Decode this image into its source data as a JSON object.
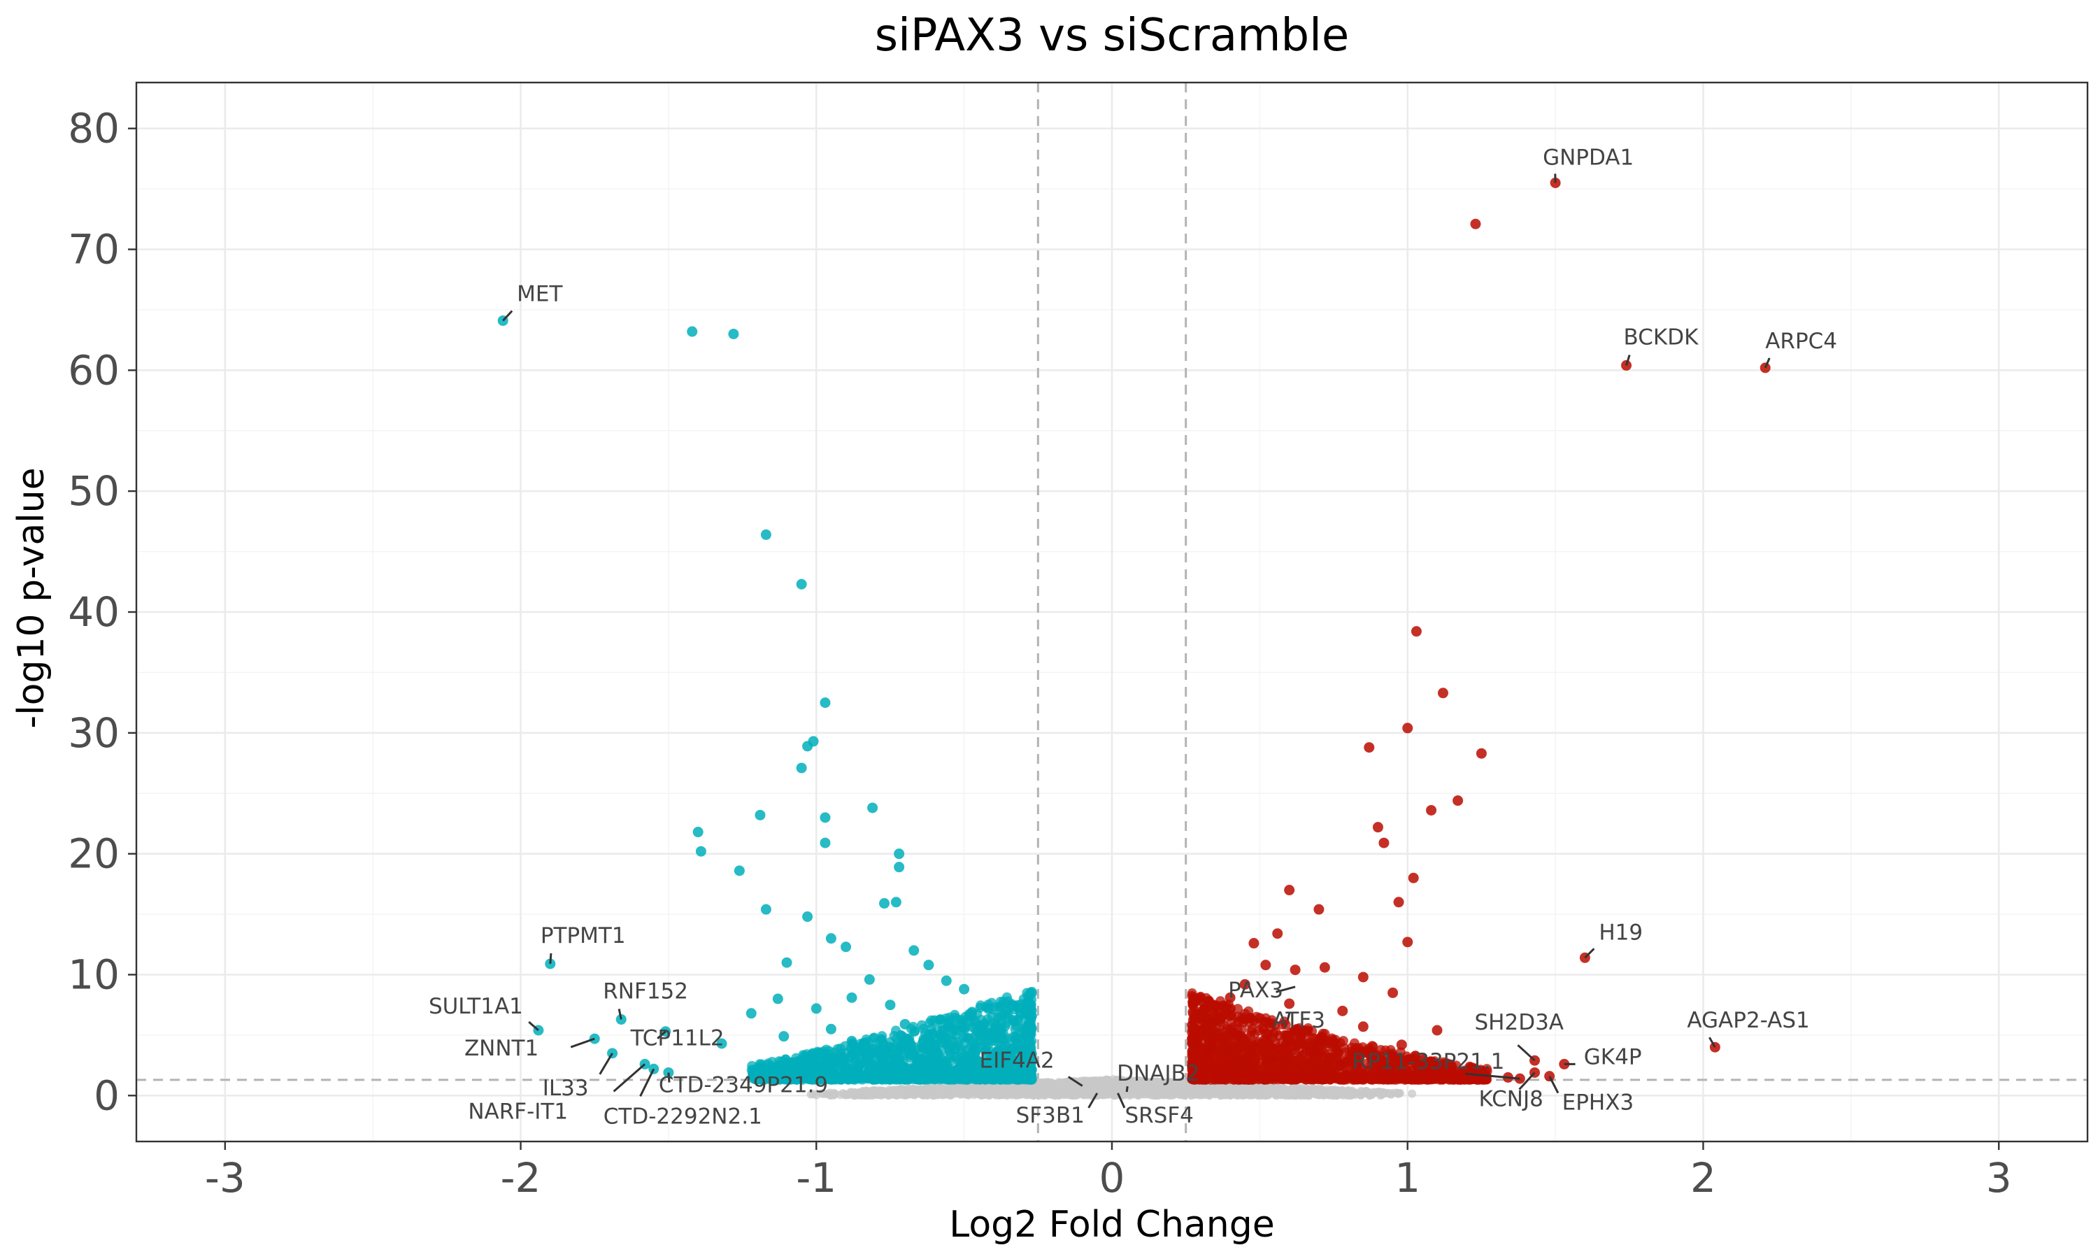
{
  "chart_data": {
    "type": "scatter",
    "title": "siPAX3 vs siScramble",
    "xlabel": "Log2 Fold Change",
    "ylabel": "-log10 p-value",
    "xlim": [
      -3.3,
      3.3
    ],
    "ylim": [
      -3.8,
      83.8
    ],
    "x_ticks": [
      -3,
      -2,
      -1,
      0,
      1,
      2,
      3
    ],
    "y_ticks": [
      0,
      10,
      20,
      30,
      40,
      50,
      60,
      70,
      80
    ],
    "grid": true,
    "thresholds": {
      "log2fc": [
        -0.25,
        0.25
      ],
      "neg_log10_p": 1.3
    },
    "colors": {
      "down": "#00AFBB",
      "up": "#BB0C00",
      "ns": "#C8C8C8"
    },
    "series": [
      {
        "group": "down",
        "points": [
          [
            -2.06,
            64.1
          ],
          [
            -1.42,
            63.2
          ],
          [
            -1.28,
            63.0
          ],
          [
            -1.17,
            46.4
          ],
          [
            -1.05,
            42.3
          ],
          [
            -0.97,
            32.5
          ],
          [
            -1.01,
            29.3
          ],
          [
            -1.03,
            28.9
          ],
          [
            -1.05,
            27.1
          ],
          [
            -1.4,
            21.8
          ],
          [
            -1.39,
            20.2
          ],
          [
            -1.19,
            23.2
          ],
          [
            -0.97,
            23.0
          ],
          [
            -0.81,
            23.8
          ],
          [
            -0.97,
            20.9
          ],
          [
            -1.26,
            18.6
          ],
          [
            -0.72,
            20.0
          ],
          [
            -0.72,
            18.9
          ],
          [
            -1.17,
            15.4
          ],
          [
            -0.77,
            15.9
          ],
          [
            -0.73,
            16.0
          ],
          [
            -1.9,
            10.9
          ],
          [
            -1.94,
            5.4
          ],
          [
            -1.75,
            4.7
          ],
          [
            -1.66,
            6.3
          ],
          [
            -1.51,
            5.3
          ],
          [
            -1.69,
            3.5
          ],
          [
            -1.58,
            2.6
          ],
          [
            -1.55,
            2.2
          ],
          [
            -1.5,
            1.9
          ],
          [
            -1.03,
            14.8
          ],
          [
            -0.95,
            13.0
          ],
          [
            -0.9,
            12.3
          ],
          [
            -1.1,
            11.0
          ],
          [
            -0.67,
            12.0
          ],
          [
            -0.62,
            10.8
          ],
          [
            -0.56,
            9.5
          ],
          [
            -0.82,
            9.6
          ],
          [
            -1.13,
            8.0
          ],
          [
            -1.0,
            7.2
          ],
          [
            -0.88,
            8.1
          ],
          [
            -0.75,
            7.5
          ],
          [
            -0.5,
            8.8
          ],
          [
            -1.22,
            6.8
          ],
          [
            -0.95,
            5.5
          ],
          [
            -0.7,
            5.9
          ],
          [
            -1.32,
            4.3
          ],
          [
            -1.11,
            4.9
          ],
          [
            -0.88,
            4.5
          ],
          [
            -0.6,
            6.2
          ]
        ]
      },
      {
        "group": "up",
        "points": [
          [
            1.5,
            75.5
          ],
          [
            1.23,
            72.1
          ],
          [
            1.74,
            60.4
          ],
          [
            2.21,
            60.2
          ],
          [
            1.03,
            38.4
          ],
          [
            1.12,
            33.3
          ],
          [
            1.0,
            30.4
          ],
          [
            1.25,
            28.3
          ],
          [
            0.87,
            28.8
          ],
          [
            1.17,
            24.4
          ],
          [
            1.08,
            23.6
          ],
          [
            0.9,
            22.2
          ],
          [
            0.92,
            20.9
          ],
          [
            1.02,
            18.0
          ],
          [
            0.6,
            17.0
          ],
          [
            0.7,
            15.4
          ],
          [
            0.97,
            16.0
          ],
          [
            0.48,
            12.6
          ],
          [
            0.56,
            13.4
          ],
          [
            1.0,
            12.7
          ],
          [
            1.6,
            11.4
          ],
          [
            2.04,
            4.0
          ],
          [
            1.53,
            2.6
          ],
          [
            1.48,
            1.6
          ],
          [
            1.43,
            1.9
          ],
          [
            1.43,
            2.9
          ],
          [
            1.34,
            1.5
          ],
          [
            1.38,
            1.4
          ],
          [
            1.22,
            1.7
          ],
          [
            1.15,
            2.0
          ],
          [
            0.52,
            10.8
          ],
          [
            0.62,
            10.4
          ],
          [
            0.72,
            10.6
          ],
          [
            0.85,
            9.8
          ],
          [
            0.45,
            9.2
          ],
          [
            0.4,
            8.1
          ],
          [
            0.6,
            7.6
          ],
          [
            0.78,
            7.0
          ],
          [
            0.95,
            8.5
          ],
          [
            0.35,
            6.6
          ],
          [
            0.5,
            6.4
          ],
          [
            0.85,
            5.7
          ],
          [
            1.1,
            5.4
          ],
          [
            0.42,
            5.0
          ],
          [
            0.7,
            4.6
          ],
          [
            0.98,
            4.2
          ],
          [
            0.33,
            3.5
          ],
          [
            0.55,
            3.1
          ],
          [
            0.78,
            2.8
          ],
          [
            1.05,
            2.4
          ]
        ]
      }
    ],
    "labels": [
      {
        "text": "MET",
        "x": -2.06,
        "y": 64.1
      },
      {
        "text": "GNPDA1",
        "x": 1.5,
        "y": 75.5
      },
      {
        "text": "BCKDK",
        "x": 1.74,
        "y": 60.4
      },
      {
        "text": "ARPC4",
        "x": 2.21,
        "y": 60.2
      },
      {
        "text": "PTPMT1",
        "x": -1.9,
        "y": 10.9
      },
      {
        "text": "SULT1A1",
        "x": -1.94,
        "y": 5.4
      },
      {
        "text": "RNF152",
        "x": -1.66,
        "y": 6.3
      },
      {
        "text": "ZNNT1",
        "x": -1.75,
        "y": 4.7
      },
      {
        "text": "TCP11L2",
        "x": -1.51,
        "y": 5.3
      },
      {
        "text": "IL33",
        "x": -1.69,
        "y": 3.5
      },
      {
        "text": "CTD-2349P21.9",
        "x": -1.5,
        "y": 1.9
      },
      {
        "text": "NARF-IT1",
        "x": -1.58,
        "y": 2.6
      },
      {
        "text": "CTD-2292N2.1",
        "x": -1.55,
        "y": 2.2
      },
      {
        "text": "EIF4A2",
        "x": -0.1,
        "y": 0.8
      },
      {
        "text": "DNAJB2",
        "x": 0.05,
        "y": 0.3
      },
      {
        "text": "SF3B1",
        "x": -0.05,
        "y": 0.2
      },
      {
        "text": "SRSF4",
        "x": 0.02,
        "y": 0.2
      },
      {
        "text": "PAX3",
        "x": 0.62,
        "y": 9.0
      },
      {
        "text": "ATF3",
        "x": 0.6,
        "y": 6.8
      },
      {
        "text": "RP11-33P21.1",
        "x": 1.38,
        "y": 1.4
      },
      {
        "text": "H19",
        "x": 1.6,
        "y": 11.4
      },
      {
        "text": "SH2D3A",
        "x": 1.43,
        "y": 2.9
      },
      {
        "text": "GK4P",
        "x": 1.53,
        "y": 2.6
      },
      {
        "text": "AGAP2-AS1",
        "x": 2.04,
        "y": 4.0
      },
      {
        "text": "KCNJ8",
        "x": 1.43,
        "y": 1.9
      },
      {
        "text": "EPHX3",
        "x": 1.48,
        "y": 1.6
      }
    ]
  }
}
